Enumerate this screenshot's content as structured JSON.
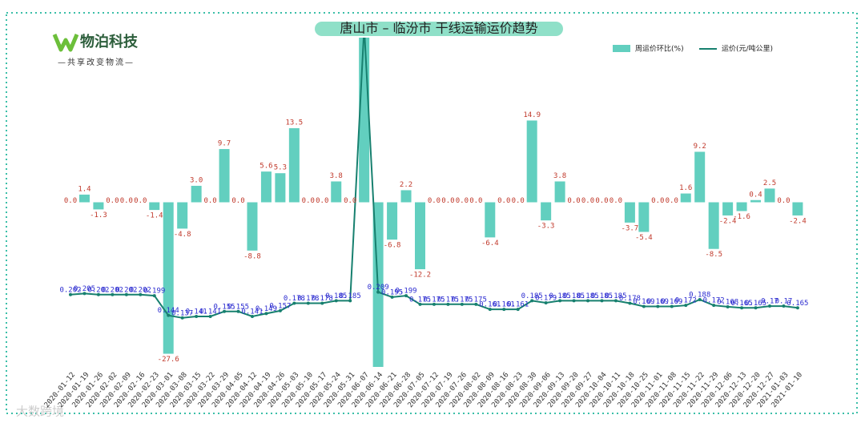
{
  "brand": {
    "name": "物泊科技",
    "slogan": "—共享改变物流—"
  },
  "watermark": "大数跨境",
  "chart_data": {
    "type": "bar_line",
    "title": "唐山市 – 临汾市 干线运输运价趋势",
    "categories": [
      "2020-01-12",
      "2020-01-19",
      "2020-01-26",
      "2020-02-02",
      "2020-02-09",
      "2020-02-16",
      "2020-02-23",
      "2020-03-01",
      "2020-03-08",
      "2020-03-15",
      "2020-03-22",
      "2020-03-29",
      "2020-04-05",
      "2020-04-12",
      "2020-04-19",
      "2020-04-26",
      "2020-05-03",
      "2020-05-10",
      "2020-05-17",
      "2020-05-24",
      "2020-05-31",
      "2020-06-07",
      "2020-06-14",
      "2020-06-21",
      "2020-06-28",
      "2020-07-05",
      "2020-07-12",
      "2020-07-19",
      "2020-07-26",
      "2020-08-02",
      "2020-08-09",
      "2020-08-16",
      "2020-08-23",
      "2020-08-30",
      "2020-09-06",
      "2020-09-13",
      "2020-09-20",
      "2020-09-27",
      "2020-10-04",
      "2020-10-11",
      "2020-10-18",
      "2020-10-25",
      "2020-11-01",
      "2020-11-08",
      "2020-11-15",
      "2020-11-22",
      "2020-11-29",
      "2020-12-06",
      "2020-12-13",
      "2020-12-20",
      "2020-12-27",
      "2021-01-03",
      "2021-01-10"
    ],
    "ylim": [
      -30,
      30
    ],
    "y2lim": [
      0,
      0.92
    ],
    "legend": "top-right",
    "series": [
      {
        "name": "周运价环比(%)",
        "color": "#62cfbf",
        "values": [
          0,
          1.4,
          -1.3,
          0,
          0,
          0,
          -1.4,
          -27.6,
          -4.8,
          3.0,
          0,
          9.7,
          0,
          -8.8,
          5.6,
          5.3,
          13.5,
          0,
          0,
          3.8,
          0,
          45,
          -35,
          -6.8,
          2.2,
          -12.2,
          0,
          0,
          0,
          0,
          -6.4,
          0,
          0,
          14.9,
          -3.3,
          3.8,
          0,
          0,
          0,
          0,
          -3.7,
          -5.4,
          0,
          0,
          1.6,
          9.2,
          -8.5,
          -2.4,
          -1.6,
          0.4,
          2.5,
          0,
          -2.4
        ],
        "value_labels": [
          "0.0",
          "1.4",
          "-1.3",
          "0.0",
          "0.0",
          "0.0",
          "-1.4",
          "-27.6",
          "-4.8",
          "3.0",
          "0.0",
          "9.7",
          "0.0",
          "-8.8",
          "5.6",
          "5.3",
          "13.5",
          "0.0",
          "0.0",
          "3.8",
          "0.0",
          null,
          null,
          "-6.8",
          "2.2",
          "-12.2",
          "0.0",
          "0.0",
          "0.0",
          "0.0",
          "-6.4",
          "0.0",
          "0.0",
          "14.9",
          "-3.3",
          "3.8",
          "0.0",
          "0.0",
          "0.0",
          "0.0",
          "-3.7",
          "-5.4",
          "0.0",
          "0.0",
          "1.6",
          "9.2",
          "-8.5",
          "-2.4",
          "-1.6",
          "0.4",
          "2.5",
          "0.0",
          "-2.4"
        ]
      },
      {
        "name": "运价(元/吨公里)",
        "color": "#17806f",
        "axis": "y2",
        "values": [
          0.202,
          0.205,
          0.202,
          0.202,
          0.202,
          0.202,
          0.199,
          0.144,
          0.137,
          0.141,
          0.141,
          0.155,
          0.155,
          0.141,
          0.149,
          0.157,
          0.178,
          0.178,
          0.178,
          0.185,
          0.185,
          0.95,
          0.209,
          0.195,
          0.199,
          0.175,
          0.175,
          0.175,
          0.175,
          0.175,
          0.161,
          0.161,
          0.161,
          0.185,
          0.179,
          0.185,
          0.185,
          0.185,
          0.185,
          0.185,
          0.178,
          0.169,
          0.169,
          0.169,
          0.172,
          0.188,
          0.172,
          0.168,
          0.165,
          0.165,
          0.17,
          0.17,
          0.165
        ]
      }
    ]
  }
}
